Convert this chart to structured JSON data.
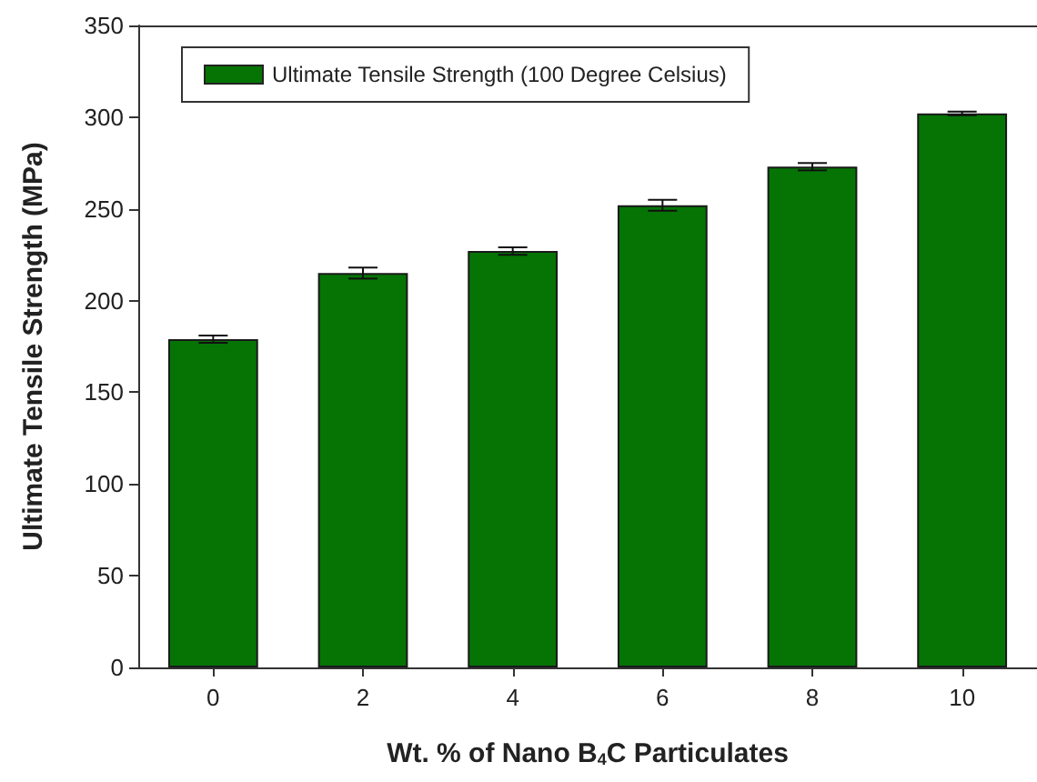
{
  "chart_data": {
    "type": "bar",
    "xlabel": "Wt. % of Nano B$_{4}$C Particulates",
    "ylabel": "Ultimate Tensile Strength (MPa)",
    "categories": [
      "0",
      "2",
      "4",
      "6",
      "8",
      "10"
    ],
    "series": [
      {
        "name": "Ultimate Tensile Strength (100 Degree Celsius)",
        "color": "#057405",
        "values": [
          179,
          215,
          227,
          252,
          273,
          302
        ],
        "errors": [
          2,
          3,
          2,
          3,
          2,
          1
        ]
      }
    ],
    "ylim": [
      0,
      350
    ],
    "yticks": [
      0,
      50,
      100,
      150,
      200,
      250,
      300,
      350
    ],
    "grid": false,
    "legend": "top left"
  }
}
